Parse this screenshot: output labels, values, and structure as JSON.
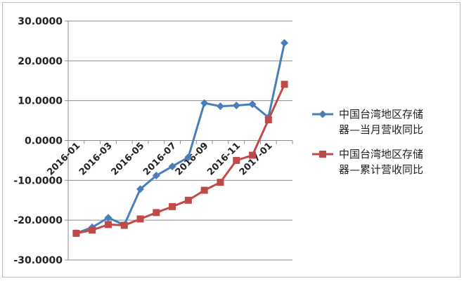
{
  "chart_data": {
    "type": "line",
    "title": "",
    "xlabel": "",
    "ylabel": "",
    "ylim": [
      -30,
      30
    ],
    "y_ticks": [
      "30.0000",
      "20.0000",
      "10.0000",
      "0.0000",
      "-10.0000",
      "-20.0000",
      "-30.0000"
    ],
    "y_tick_values": [
      30,
      20,
      10,
      0,
      -10,
      -20,
      -30
    ],
    "categories": [
      "2016-01",
      "2016-02",
      "2016-03",
      "2016-04",
      "2016-05",
      "2016-06",
      "2016-07",
      "2016-08",
      "2016-09",
      "2016-10",
      "2016-11",
      "2016-12",
      "2017-01",
      "2017-02"
    ],
    "x_tick_labels": [
      "2016-01",
      "2016-03",
      "2016-05",
      "2016-07",
      "2016-09",
      "2016-11",
      "2017-01"
    ],
    "x_tick_label_indices": [
      0,
      2,
      4,
      6,
      8,
      10,
      12
    ],
    "grid": "horizontal",
    "legend_position": "right",
    "series": [
      {
        "name": "中国台湾地区存储器—当月营收同比",
        "legend_lines": [
          "中国台湾地区存储",
          "器—当月营收同比"
        ],
        "color": "#4a7ebb",
        "marker": "diamond",
        "values": [
          -23.3,
          -21.8,
          -19.4,
          -21.2,
          -12.2,
          -8.8,
          -6.5,
          -4.2,
          9.4,
          8.6,
          8.8,
          9.1,
          5.8,
          24.5
        ]
      },
      {
        "name": "中国台湾地区存储器—累计营收同比",
        "legend_lines": [
          "中国台湾地区存储",
          "器—累计营收同比"
        ],
        "color": "#be4b48",
        "marker": "square",
        "values": [
          -23.3,
          -22.5,
          -21.1,
          -21.3,
          -19.7,
          -18.1,
          -16.6,
          -15.0,
          -12.5,
          -10.5,
          -5.0,
          -3.7,
          5.2,
          14.1
        ]
      }
    ]
  }
}
